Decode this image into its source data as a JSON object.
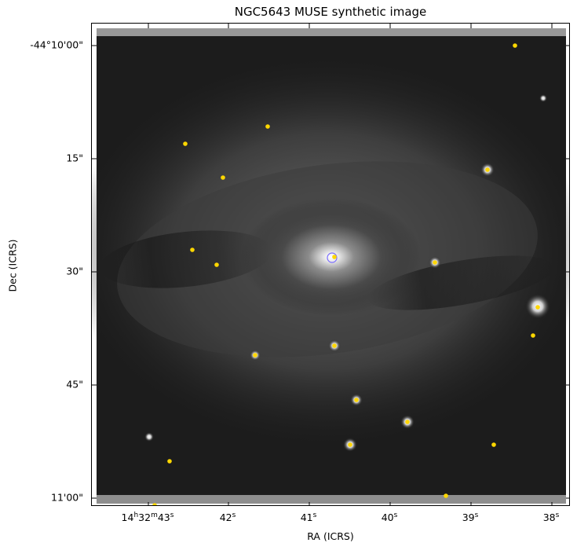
{
  "title": "NGC5643 MUSE synthetic image",
  "axes": {
    "xlabel": "RA (ICRS)",
    "ylabel": "Dec (ICRS)",
    "yticks": [
      "-44°10'00\"",
      "15\"",
      "30\"",
      "45\"",
      "11'00\""
    ],
    "xticks": [
      {
        "main": "14",
        "h": "h",
        "mid": "32",
        "m": "m",
        "last": "43",
        "s": "s"
      },
      {
        "main": "42",
        "s": "s"
      },
      {
        "main": "41",
        "s": "s"
      },
      {
        "main": "40",
        "s": "s"
      },
      {
        "main": "39",
        "s": "s"
      },
      {
        "main": "38",
        "s": "s"
      }
    ]
  },
  "image": {
    "colormap": "grayscale",
    "marker_color": "#ffd700",
    "nucleus_circle_color": "#7a6cff"
  }
}
